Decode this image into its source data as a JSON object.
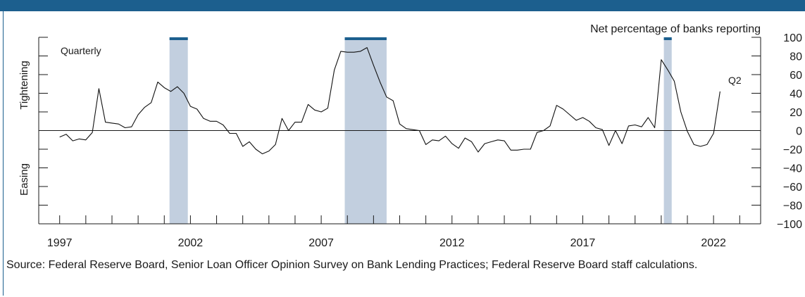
{
  "chart_data": {
    "type": "line",
    "title": "",
    "unit_label": "Net percentage of banks reporting",
    "frequency_label": "Quarterly",
    "upper_region_label": "Tightening",
    "lower_region_label": "Easing",
    "end_annotation": "Q2",
    "source": "Source: Federal Reserve Board, Senior Loan Officer Opinion Survey on Bank Lending Practices; Federal Reserve Board staff calculations.",
    "xlim": [
      1996.2,
      2023.8
    ],
    "ylim": [
      -100,
      100
    ],
    "x_ticks": [
      1997,
      2002,
      2007,
      2012,
      2017,
      2022
    ],
    "y_ticks": [
      -100,
      -80,
      -60,
      -40,
      -20,
      0,
      20,
      40,
      60,
      80,
      100
    ],
    "y_tick_labels": [
      "−100",
      "−80",
      "−60",
      "−40",
      "−20",
      "0",
      "20",
      "40",
      "60",
      "80",
      "100"
    ],
    "recessions": [
      {
        "start": 2001.2,
        "end": 2001.9
      },
      {
        "start": 2007.9,
        "end": 2009.5
      },
      {
        "start": 2020.1,
        "end": 2020.4
      }
    ],
    "series": [
      {
        "values": [
          [
            1997.0,
            -7
          ],
          [
            1997.25,
            -4
          ],
          [
            1997.5,
            -11
          ],
          [
            1997.75,
            -9
          ],
          [
            1998.0,
            -10
          ],
          [
            1998.25,
            -2
          ],
          [
            1998.5,
            45
          ],
          [
            1998.75,
            9
          ],
          [
            1999.0,
            8
          ],
          [
            1999.25,
            7
          ],
          [
            1999.5,
            3
          ],
          [
            1999.75,
            4
          ],
          [
            2000.0,
            17
          ],
          [
            2000.25,
            25
          ],
          [
            2000.5,
            30
          ],
          [
            2000.75,
            52
          ],
          [
            2001.0,
            46
          ],
          [
            2001.25,
            42
          ],
          [
            2001.5,
            47
          ],
          [
            2001.75,
            40
          ],
          [
            2002.0,
            26
          ],
          [
            2002.25,
            23
          ],
          [
            2002.5,
            13
          ],
          [
            2002.75,
            10
          ],
          [
            2003.0,
            10
          ],
          [
            2003.25,
            6
          ],
          [
            2003.5,
            -3
          ],
          [
            2003.75,
            -3
          ],
          [
            2004.0,
            -17
          ],
          [
            2004.25,
            -12
          ],
          [
            2004.5,
            -20
          ],
          [
            2004.75,
            -25
          ],
          [
            2005.0,
            -22
          ],
          [
            2005.25,
            -15
          ],
          [
            2005.5,
            13
          ],
          [
            2005.75,
            0
          ],
          [
            2006.0,
            9
          ],
          [
            2006.25,
            9
          ],
          [
            2006.5,
            28
          ],
          [
            2006.75,
            22
          ],
          [
            2007.0,
            20
          ],
          [
            2007.25,
            24
          ],
          [
            2007.5,
            65
          ],
          [
            2007.75,
            85
          ],
          [
            2008.0,
            84
          ],
          [
            2008.25,
            84
          ],
          [
            2008.5,
            85
          ],
          [
            2008.75,
            89
          ],
          [
            2009.0,
            70
          ],
          [
            2009.25,
            52
          ],
          [
            2009.5,
            36
          ],
          [
            2009.75,
            32
          ],
          [
            2010.0,
            7
          ],
          [
            2010.25,
            2
          ],
          [
            2010.5,
            1
          ],
          [
            2010.75,
            0
          ],
          [
            2011.0,
            -15
          ],
          [
            2011.25,
            -10
          ],
          [
            2011.5,
            -11
          ],
          [
            2011.75,
            -6
          ],
          [
            2012.0,
            -14
          ],
          [
            2012.25,
            -19
          ],
          [
            2012.5,
            -8
          ],
          [
            2012.75,
            -12
          ],
          [
            2013.0,
            -23
          ],
          [
            2013.25,
            -14
          ],
          [
            2013.5,
            -12
          ],
          [
            2013.75,
            -10
          ],
          [
            2014.0,
            -11
          ],
          [
            2014.25,
            -21
          ],
          [
            2014.5,
            -21
          ],
          [
            2014.75,
            -20
          ],
          [
            2015.0,
            -20
          ],
          [
            2015.25,
            -2
          ],
          [
            2015.5,
            0
          ],
          [
            2015.75,
            5
          ],
          [
            2016.0,
            27
          ],
          [
            2016.25,
            23
          ],
          [
            2016.5,
            17
          ],
          [
            2016.75,
            11
          ],
          [
            2017.0,
            14
          ],
          [
            2017.25,
            10
          ],
          [
            2017.5,
            3
          ],
          [
            2017.75,
            1
          ],
          [
            2018.0,
            -16
          ],
          [
            2018.25,
            0
          ],
          [
            2018.5,
            -14
          ],
          [
            2018.75,
            5
          ],
          [
            2019.0,
            6
          ],
          [
            2019.25,
            4
          ],
          [
            2019.5,
            14
          ],
          [
            2019.75,
            3
          ],
          [
            2020.0,
            76
          ],
          [
            2020.25,
            65
          ],
          [
            2020.5,
            53
          ],
          [
            2020.75,
            20
          ],
          [
            2021.0,
            -1
          ],
          [
            2021.25,
            -15
          ],
          [
            2021.5,
            -17
          ],
          [
            2021.75,
            -15
          ],
          [
            2022.0,
            -3
          ],
          [
            2022.25,
            42
          ]
        ]
      }
    ]
  }
}
